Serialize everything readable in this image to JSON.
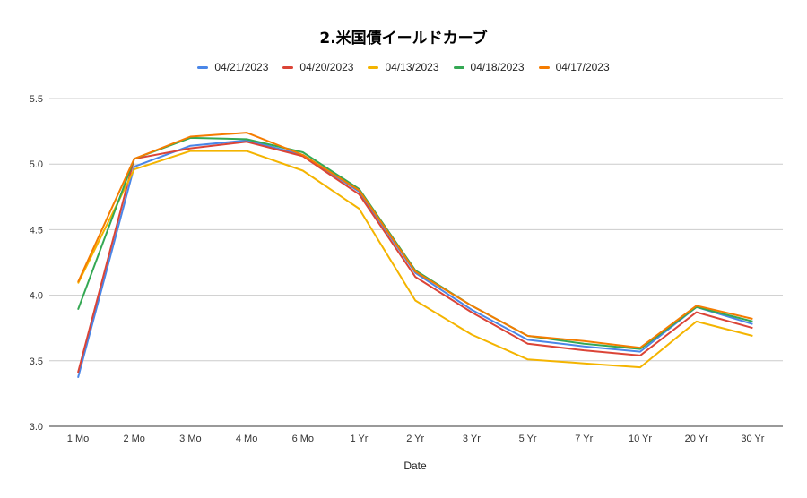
{
  "chart_data": {
    "type": "line",
    "title": "2.米国債イールドカーブ",
    "xlabel": "Date",
    "ylabel": "",
    "categories": [
      "1 Mo",
      "2 Mo",
      "3 Mo",
      "4 Mo",
      "6 Mo",
      "1 Yr",
      "2 Yr",
      "3 Yr",
      "5 Yr",
      "7 Yr",
      "10 Yr",
      "20 Yr",
      "30 Yr"
    ],
    "ylim": [
      3.0,
      5.5
    ],
    "yticks": [
      "3.0",
      "3.5",
      "4.0",
      "4.5",
      "5.0",
      "5.5"
    ],
    "grid": true,
    "legend_position": "top",
    "series": [
      {
        "name": "04/21/2023",
        "color": "#4a86e8",
        "values": [
          3.37,
          4.98,
          5.14,
          5.18,
          5.07,
          4.79,
          4.17,
          3.89,
          3.66,
          3.61,
          3.57,
          3.91,
          3.78
        ]
      },
      {
        "name": "04/20/2023",
        "color": "#db4437",
        "values": [
          3.41,
          5.04,
          5.12,
          5.17,
          5.06,
          4.77,
          4.14,
          3.87,
          3.63,
          3.58,
          3.54,
          3.87,
          3.75
        ]
      },
      {
        "name": "04/13/2023",
        "color": "#f4b400",
        "values": [
          4.09,
          4.96,
          5.1,
          5.1,
          4.95,
          4.66,
          3.96,
          3.7,
          3.51,
          3.48,
          3.45,
          3.8,
          3.69
        ]
      },
      {
        "name": "04/18/2023",
        "color": "#34a853",
        "values": [
          3.89,
          5.04,
          5.2,
          5.19,
          5.09,
          4.81,
          4.19,
          3.92,
          3.69,
          3.63,
          3.59,
          3.91,
          3.8
        ]
      },
      {
        "name": "04/17/2023",
        "color": "#f57c00",
        "values": [
          4.1,
          5.04,
          5.21,
          5.24,
          5.07,
          4.8,
          4.18,
          3.92,
          3.69,
          3.65,
          3.6,
          3.92,
          3.82
        ]
      }
    ]
  }
}
